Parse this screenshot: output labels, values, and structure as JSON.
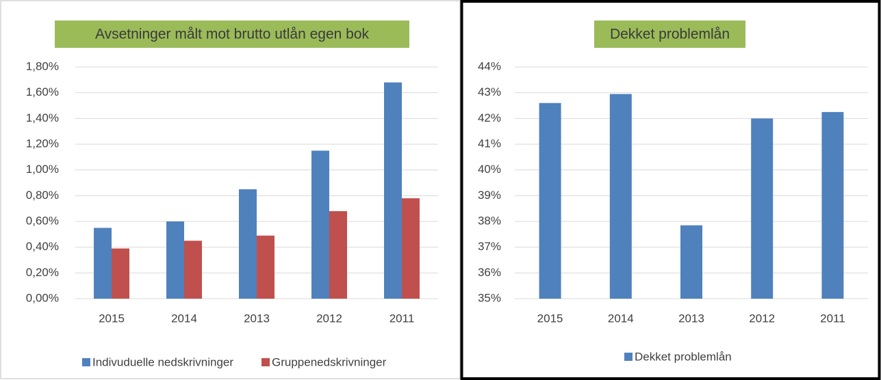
{
  "chart_data": [
    {
      "type": "bar",
      "title": "Avsetninger målt mot brutto utlån egen bok",
      "categories": [
        "2015",
        "2014",
        "2013",
        "2012",
        "2011"
      ],
      "series": [
        {
          "name": "Indivuduelle nedskrivninger",
          "color": "#4f81bd",
          "values": [
            0.55,
            0.6,
            0.85,
            1.15,
            1.68
          ]
        },
        {
          "name": "Gruppenedskrivninger",
          "color": "#c0504d",
          "values": [
            0.39,
            0.45,
            0.49,
            0.68,
            0.78
          ]
        }
      ],
      "ylim": [
        0,
        1.8
      ],
      "yticks": [
        {
          "value": 0,
          "label": "0,00%"
        },
        {
          "value": 0.2,
          "label": "0,20%"
        },
        {
          "value": 0.4,
          "label": "0,40%"
        },
        {
          "value": 0.6,
          "label": "0,60%"
        },
        {
          "value": 0.8,
          "label": "0,80%"
        },
        {
          "value": 1.0,
          "label": "1,00%"
        },
        {
          "value": 1.2,
          "label": "1,20%"
        },
        {
          "value": 1.4,
          "label": "1,40%"
        },
        {
          "value": 1.6,
          "label": "1,60%"
        },
        {
          "value": 1.8,
          "label": "1,80%"
        }
      ],
      "grid": true,
      "legend": "bottom"
    },
    {
      "type": "bar",
      "title": "Dekket problemlån",
      "categories": [
        "2015",
        "2014",
        "2013",
        "2012",
        "2011"
      ],
      "series": [
        {
          "name": "Dekket problemlån",
          "color": "#4f81bd",
          "values": [
            42.6,
            42.95,
            37.85,
            42.0,
            42.25
          ]
        }
      ],
      "ylim": [
        35,
        44
      ],
      "yticks": [
        {
          "value": 35,
          "label": "35%"
        },
        {
          "value": 36,
          "label": "36%"
        },
        {
          "value": 37,
          "label": "37%"
        },
        {
          "value": 38,
          "label": "38%"
        },
        {
          "value": 39,
          "label": "39%"
        },
        {
          "value": 40,
          "label": "40%"
        },
        {
          "value": 41,
          "label": "41%"
        },
        {
          "value": 42,
          "label": "42%"
        },
        {
          "value": 43,
          "label": "43%"
        },
        {
          "value": 44,
          "label": "44%"
        }
      ],
      "grid": true,
      "legend": "bottom"
    }
  ]
}
